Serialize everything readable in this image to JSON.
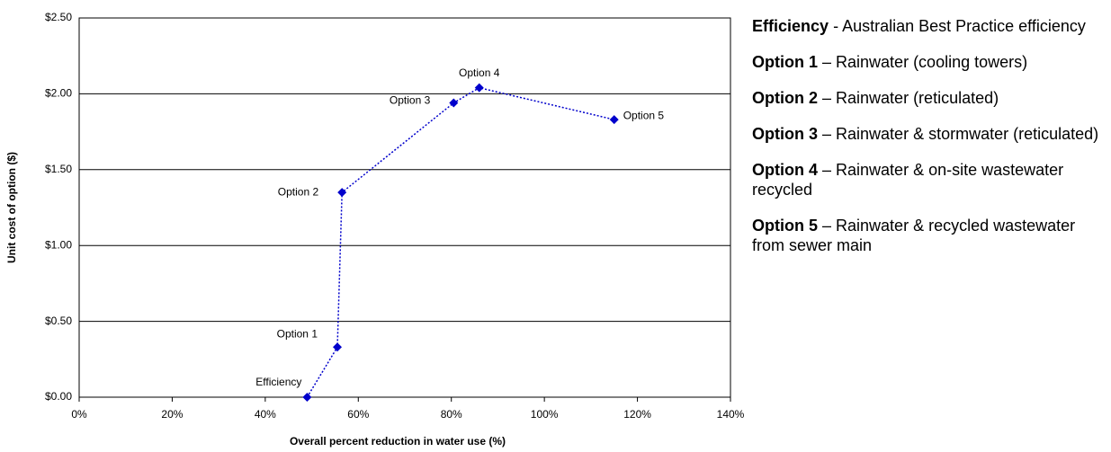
{
  "chart_data": {
    "type": "scatter",
    "x_label": "Overall percent reduction in water use (%)",
    "y_label": "Unit cost of option ($)",
    "x": [
      49,
      55.5,
      56.5,
      80.5,
      86,
      115
    ],
    "values": [
      0,
      0.33,
      1.35,
      1.94,
      2.04,
      1.83
    ],
    "point_labels": [
      "Efficiency",
      "Option 1",
      "Option 2",
      "Option 3",
      "Option 4",
      "Option 5"
    ],
    "color": "#0000cc",
    "xlim": [
      0,
      140
    ],
    "xticks": [
      {
        "value": 0,
        "label": "0%"
      },
      {
        "value": 20,
        "label": "20%"
      },
      {
        "value": 40,
        "label": "40%"
      },
      {
        "value": 60,
        "label": "60%"
      },
      {
        "value": 80,
        "label": "80%"
      },
      {
        "value": 100,
        "label": "100%"
      },
      {
        "value": 120,
        "label": "120%"
      },
      {
        "value": 140,
        "label": "140%"
      }
    ],
    "ylim": [
      0,
      2.5
    ],
    "yticks": [
      {
        "value": 0,
        "label": "$0.00"
      },
      {
        "value": 0.5,
        "label": "$0.50"
      },
      {
        "value": 1,
        "label": "$1.00"
      },
      {
        "value": 1.5,
        "label": "$1.50"
      },
      {
        "value": 2,
        "label": "$2.00"
      },
      {
        "value": 2.5,
        "label": "$2.50"
      }
    ],
    "grid": true
  },
  "notes": [
    {
      "term": "Efficiency",
      "text": "- Australian Best Practice efficiency"
    },
    {
      "term": "Option 1",
      "text": "– Rainwater (cooling towers)"
    },
    {
      "term": "Option 2",
      "text": "– Rainwater (reticulated)"
    },
    {
      "term": "Option 3",
      "text": "– Rainwater & stormwater (reticulated)"
    },
    {
      "term": "Option 4",
      "text": "– Rainwater & on-site wastewater recycled"
    },
    {
      "term": "Option 5",
      "text": "– Rainwater & recycled wastewater from sewer main"
    }
  ]
}
